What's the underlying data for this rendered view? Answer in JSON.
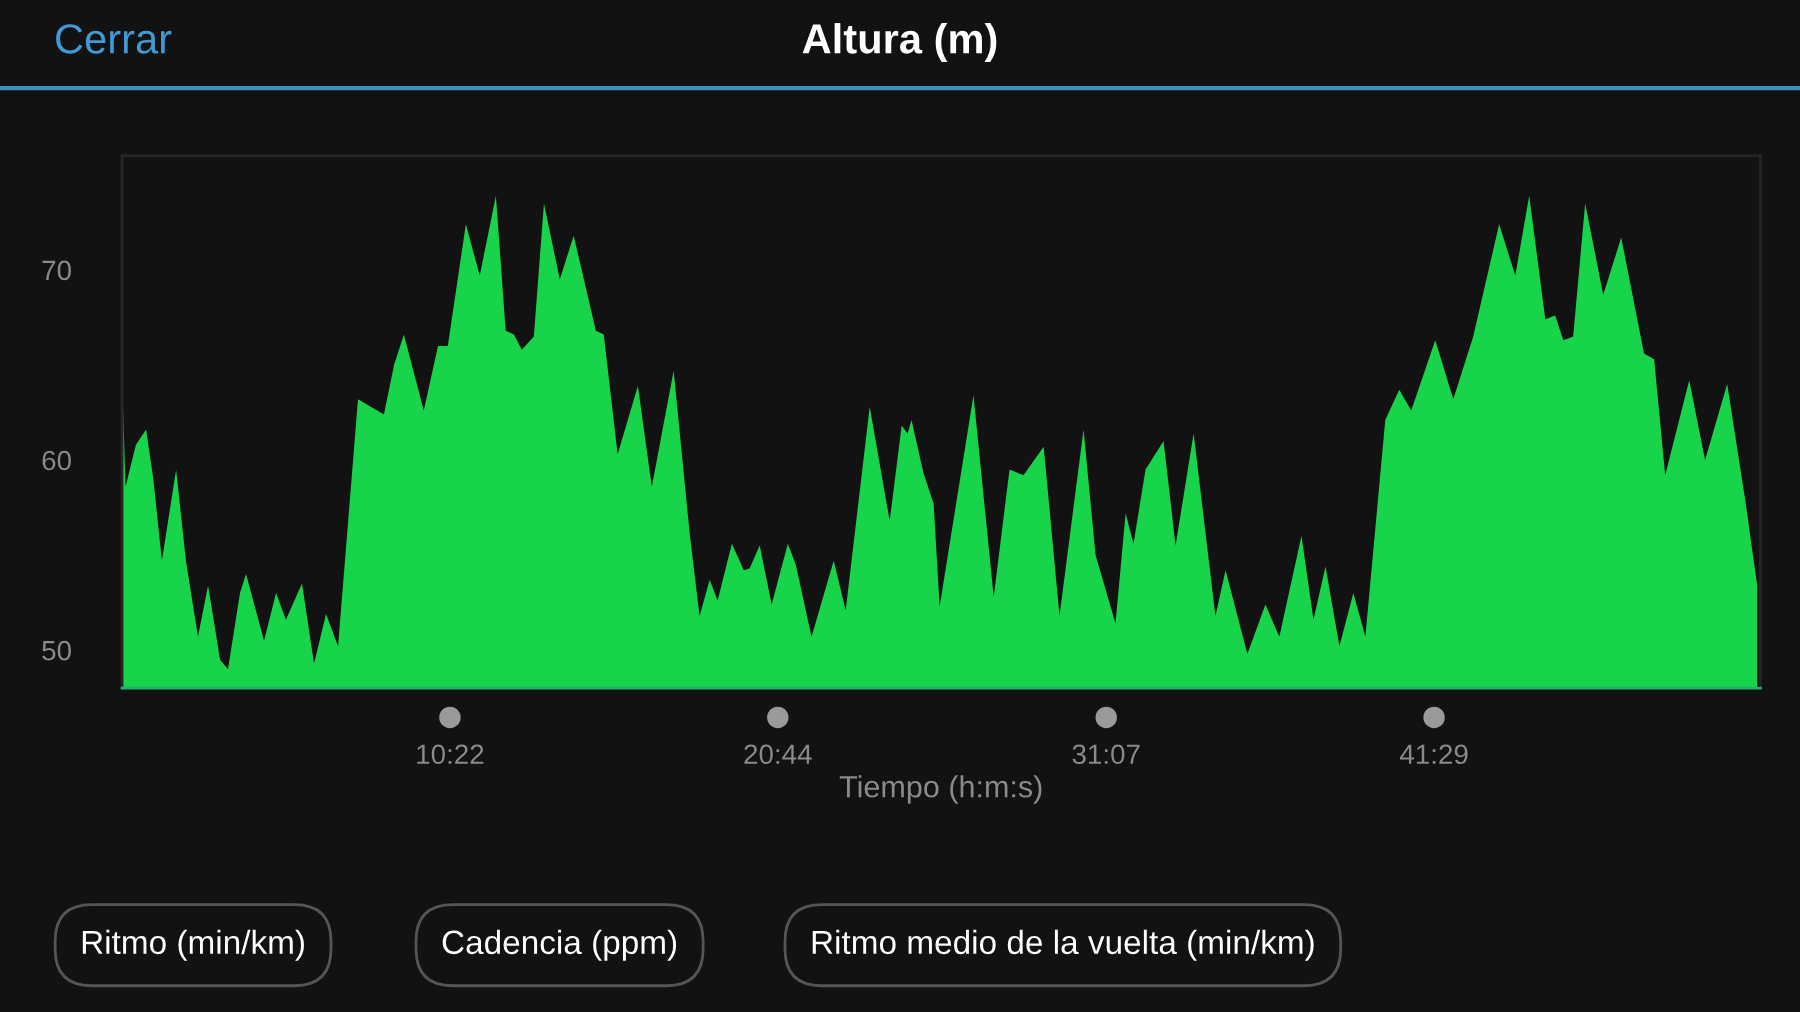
{
  "chart_data": {
    "type": "area",
    "title": "Altura (m)",
    "xlabel": "Tiempo (h:m:s)",
    "annotations": [
      "Cerrar",
      "Ritmo (min/km)",
      "Cadencia (ppm)",
      "Ritmo medio de la vuelta (min/km)"
    ],
    "x": [
      0,
      0.11,
      0.44,
      0.76,
      0.99,
      1.26,
      1.71,
      2.02,
      2.4,
      2.72,
      3.1,
      3.35,
      3.73,
      3.92,
      4.49,
      4.87,
      5.18,
      5.69,
      6.07,
      6.45,
      6.83,
      7.46,
      8.28,
      8.6,
      8.91,
      9.54,
      9.99,
      10.3,
      10.87,
      11.31,
      11.82,
      12.13,
      12.39,
      12.64,
      13.02,
      13.34,
      13.84,
      14.28,
      14.98,
      15.23,
      15.67,
      16.31,
      16.75,
      17.44,
      17.95,
      18.26,
      18.58,
      18.83,
      19.28,
      19.66,
      19.84,
      20.16,
      20.54,
      21.05,
      21.3,
      21.8,
      22.5,
      22.88,
      23.64,
      24.27,
      24.65,
      24.84,
      24.96,
      25.34,
      25.66,
      25.85,
      26.92,
      27.56,
      28.06,
      28.5,
      29.14,
      29.64,
      30.4,
      30.78,
      31.41,
      31.73,
      31.98,
      32.36,
      32.93,
      33.31,
      33.88,
      34.57,
      34.89,
      35.58,
      36.15,
      36.59,
      37.29,
      37.67,
      38.05,
      38.49,
      38.93,
      39.31,
      39.94,
      40.38,
      40.76,
      41.52,
      42.09,
      42.72,
      43.54,
      44.05,
      44.49,
      45.0,
      45.31,
      45.57,
      45.88,
      46.26,
      46.83,
      47.4,
      48.12,
      48.44,
      48.79,
      49.55,
      50.05,
      50.75,
      51.32,
      51.7
    ],
    "series": [
      {
        "color": "#17d44a",
        "values": [
          64.5,
          58.6,
          60.8,
          61.6,
          59,
          54.7,
          59.5,
          54.7,
          50.7,
          53.4,
          49.5,
          49,
          53,
          54,
          50.5,
          53,
          51.6,
          53.5,
          49.3,
          51.9,
          50.2,
          63.2,
          62.4,
          65,
          66.6,
          62.6,
          66,
          66,
          72.4,
          69.7,
          73.9,
          66.8,
          66.6,
          65.8,
          66.5,
          73.5,
          69.5,
          71.8,
          66.8,
          66.6,
          60.3,
          63.9,
          58.6,
          64.7,
          56.1,
          51.8,
          53.7,
          52.6,
          55.6,
          54.2,
          54.3,
          55.5,
          52.4,
          55.6,
          54.5,
          50.7,
          54.7,
          52.1,
          62.8,
          56.8,
          61.8,
          61.4,
          62.1,
          59.3,
          57.7,
          52.3,
          63.4,
          52.8,
          59.5,
          59.2,
          60.7,
          51.8,
          61.6,
          55,
          51.4,
          57.2,
          55.6,
          59.5,
          61,
          55.5,
          61.4,
          51.8,
          54.2,
          49.8,
          52.4,
          50.7,
          56,
          51.6,
          54.4,
          50.2,
          53,
          50.7,
          62.1,
          63.7,
          62.6,
          66.3,
          63.2,
          66.5,
          72.4,
          69.7,
          73.9,
          67.4,
          67.6,
          66.3,
          66.5,
          73.5,
          68.7,
          71.7,
          65.6,
          65.3,
          59.2,
          64.2,
          60,
          64,
          57.9,
          53.4
        ]
      }
    ],
    "xlim": [
      0,
      51.8
    ],
    "ylim": [
      48,
      76
    ],
    "xticks": [
      {
        "value": 10.367,
        "label": "10:22"
      },
      {
        "value": 20.733,
        "label": "20:44"
      },
      {
        "value": 31.117,
        "label": "31:07"
      },
      {
        "value": 41.483,
        "label": "41:29"
      }
    ],
    "yticks": [
      50,
      60,
      70
    ],
    "grid": false
  }
}
